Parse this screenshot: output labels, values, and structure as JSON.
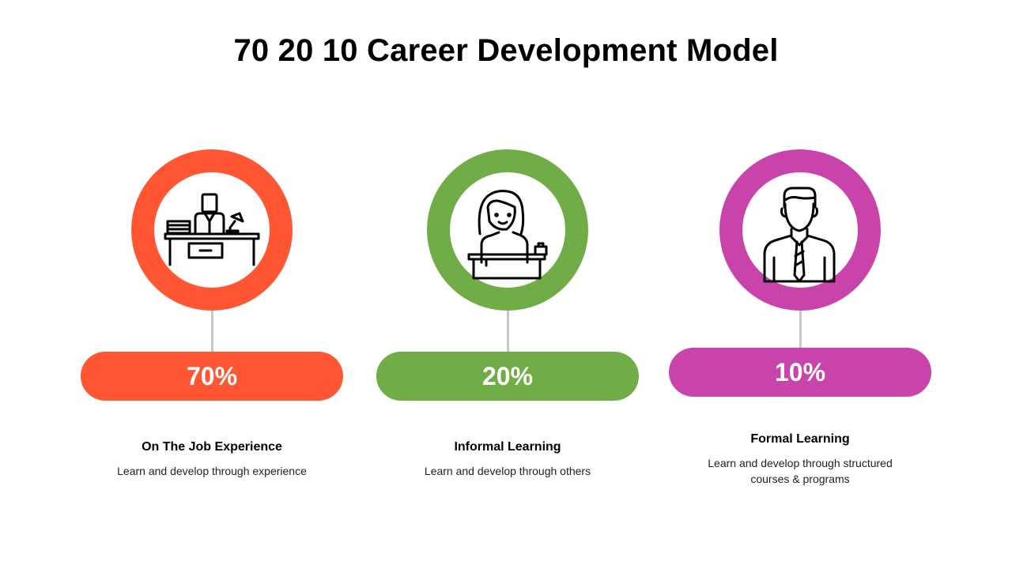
{
  "title": "70 20 10 Career Development Model",
  "colors": {
    "orange": "#FF5733",
    "green": "#70AD47",
    "magenta": "#C844AA"
  },
  "items": [
    {
      "percent": "70%",
      "value": 70,
      "heading": "On The Job Experience",
      "description": [
        "Learn and develop through  experience"
      ],
      "icon": "office-worker-desk-icon",
      "color": "#FF5733"
    },
    {
      "percent": "20%",
      "value": 20,
      "heading": "Informal Learning",
      "description": [
        "Learn and develop through  others"
      ],
      "icon": "woman-at-desk-icon",
      "color": "#70AD47"
    },
    {
      "percent": "10%",
      "value": 10,
      "heading": "Formal Learning",
      "description": [
        "Learn and develop through  structured",
        "courses & programs"
      ],
      "icon": "businessman-icon",
      "color": "#C844AA"
    }
  ]
}
